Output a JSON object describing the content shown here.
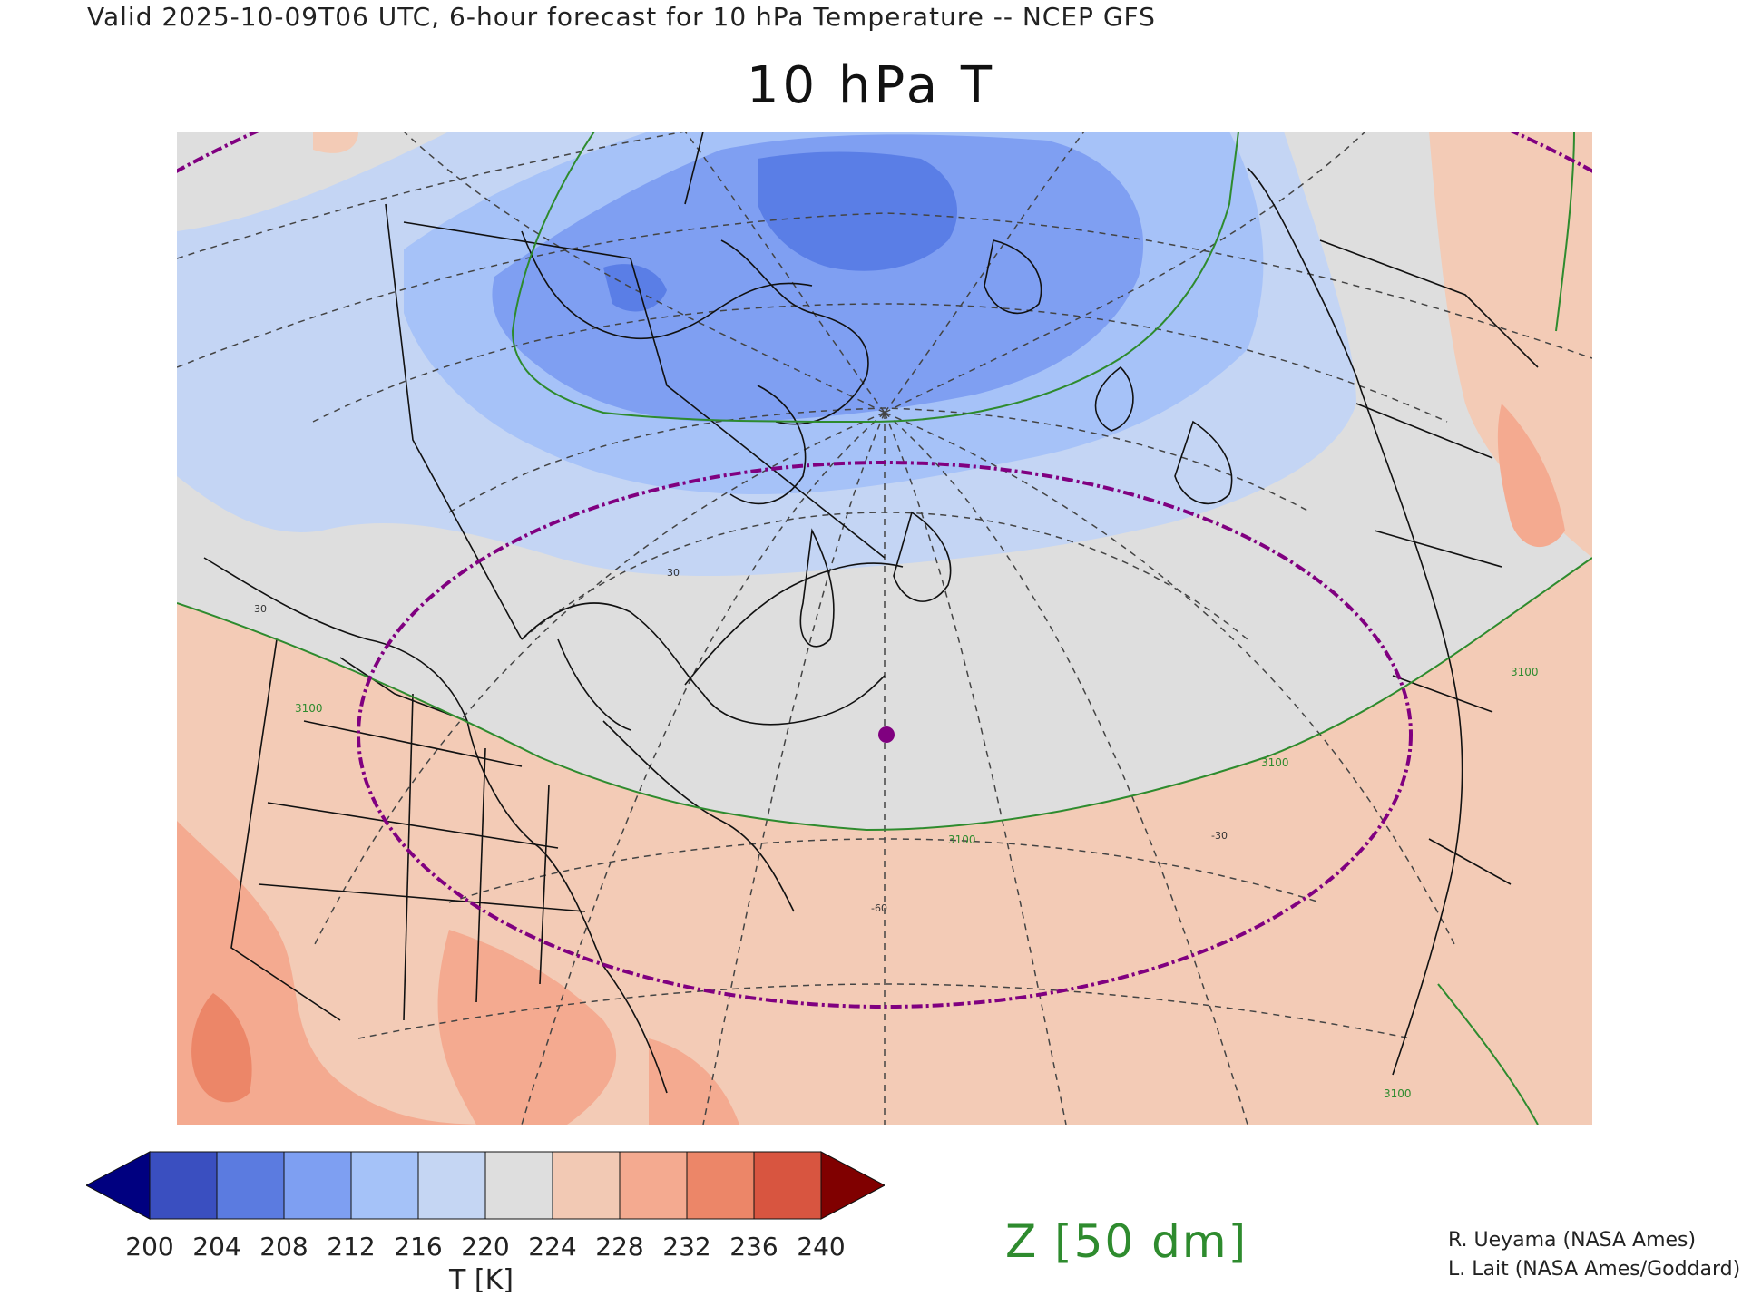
{
  "header": {
    "valid_line": "Valid 2025-10-09T06 UTC, 6-hour forecast for 10 hPa Temperature -- NCEP GFS",
    "title": "10 hPa T"
  },
  "map": {
    "contour_labels": [
      "3100",
      "3100",
      "3100",
      "3100",
      "3100"
    ],
    "graticule_labels": [
      "-60",
      "-30",
      "30",
      "30"
    ],
    "colors": {
      "very_cold": "#5a7ee6",
      "cold": "#7f9ff2",
      "cool": "#a6c2f8",
      "cool_light": "#c4d5f4",
      "neutral": "#dedede",
      "warm_light": "#f3cbb6",
      "warm": "#f4aa90",
      "warm_strong": "#ec8668",
      "contour_green": "#2e8b2e",
      "ring_purple": "#800080"
    }
  },
  "colorbar": {
    "ticks": [
      "200",
      "204",
      "208",
      "212",
      "216",
      "220",
      "224",
      "228",
      "232",
      "236",
      "240"
    ],
    "colors": [
      "#000080",
      "#3a4fc0",
      "#5b7be0",
      "#7e9ff2",
      "#a5c2f8",
      "#c5d6f3",
      "#dedede",
      "#f2c9b4",
      "#f4aa90",
      "#ec8668",
      "#d85540",
      "#800000"
    ],
    "label": "T [K]"
  },
  "legend": {
    "contour": "Z [50 dm]"
  },
  "credits": {
    "line1": "R. Ueyama (NASA Ames)",
    "line2": "L. Lait (NASA Ames/Goddard)"
  }
}
